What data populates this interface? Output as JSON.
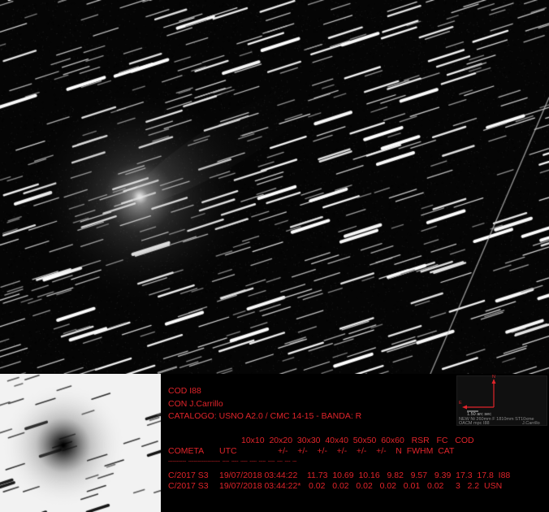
{
  "image": {
    "description_colors": {
      "background": "#000000",
      "caption": "#e0242a"
    }
  },
  "caption": {
    "line1": "COD I88",
    "line2": "CON J.Carrillo",
    "line3": "CATALOGO: USNO A2.0 / CMC 14-15 - BANDA: R",
    "header_top": "10x10  20x20  30x30  40x40  50x50  60x60   RSR   FC   COD",
    "header_bottom_left": "COMETA",
    "header_bottom_utc": "UTC",
    "header_bottom_rest": "+/-    +/-    +/-    +/-    +/-    +/-    N  FWHM  CAT",
    "separator": "-------------  -----------------------  -----  -----  -----  -----  -----  -----  ----  ----  ---",
    "rows": [
      {
        "obj": "C/2017 S3",
        "utc": "19/07/2018 03:44:22",
        "vals": "11.73  10.69  10.16   9.82   9.57   9.39  17.3  17.8  I88"
      },
      {
        "obj": "C/2017 S3",
        "utc": "19/07/2018 03:44:22*",
        "vals": "0.02   0.02   0.02   0.02   0.01   0.02     3   2.2  USN"
      }
    ]
  },
  "compass": {
    "north": "N",
    "east": "E",
    "scale": "1.50 arc sec",
    "info": "NEW Nt 260mm F 1810mm ST10xme",
    "station": "OACM mpc I88",
    "author": "J.Carrillo",
    "icon": "compass-arrows-icon"
  }
}
